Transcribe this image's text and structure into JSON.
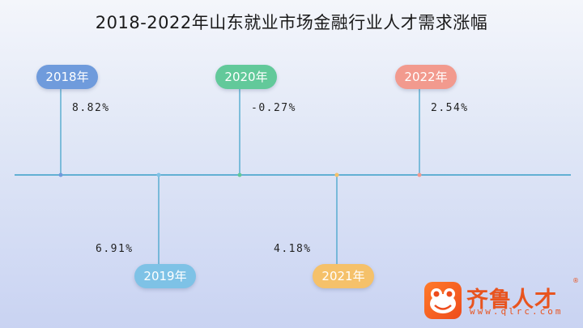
{
  "chart_data": {
    "type": "timeline",
    "title": "2018-2022年山东就业市场金融行业人才需求涨幅",
    "points": [
      {
        "year": "2018年",
        "value": "8.82%",
        "color": "#6f9bdc"
      },
      {
        "year": "2019年",
        "value": "6.91%",
        "color": "#7ec2e6"
      },
      {
        "year": "2020年",
        "value": "-0.27%",
        "color": "#62c99a"
      },
      {
        "year": "2021年",
        "value": "4.18%",
        "color": "#f5c16a"
      },
      {
        "year": "2022年",
        "value": "2.54%",
        "color": "#f29a8e"
      }
    ]
  },
  "logo": {
    "name": "齐鲁人才",
    "url": "www.qlrc.com",
    "reg": "®"
  }
}
